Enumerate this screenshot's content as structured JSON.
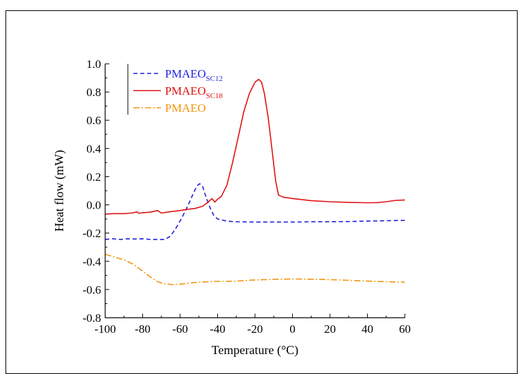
{
  "chart_data": {
    "type": "line",
    "title": "",
    "xlabel": "Temperature (°C)",
    "ylabel": "Heat flow (mW)",
    "xlim": [
      -100,
      60
    ],
    "ylim": [
      -0.8,
      1.0
    ],
    "xticks": [
      -100,
      -80,
      -60,
      -40,
      -20,
      0,
      20,
      40,
      60
    ],
    "yticks": [
      -0.8,
      -0.6,
      -0.4,
      -0.2,
      0.0,
      0.2,
      0.4,
      0.6,
      0.8,
      1.0
    ],
    "xtick_labels": [
      "-100",
      "-80",
      "-60",
      "-40",
      "-20",
      "0",
      "20",
      "40",
      "60"
    ],
    "ytick_labels": [
      "-0.8",
      "-0.6",
      "-0.4",
      "-0.2",
      "0.0",
      "0.2",
      "0.4",
      "0.6",
      "0.8",
      "1.0"
    ],
    "grid": false,
    "legend_position": "top-left",
    "series": [
      {
        "name": "PMAEO",
        "name_sub": "SC12",
        "color": "#1f1fdd",
        "dash": "dashed",
        "points": [
          [
            -100,
            -0.245
          ],
          [
            -96,
            -0.24
          ],
          [
            -92,
            -0.245
          ],
          [
            -88,
            -0.24
          ],
          [
            -84,
            -0.242
          ],
          [
            -80,
            -0.24
          ],
          [
            -76,
            -0.245
          ],
          [
            -72,
            -0.245
          ],
          [
            -68,
            -0.245
          ],
          [
            -65,
            -0.22
          ],
          [
            -62,
            -0.16
          ],
          [
            -59,
            -0.09
          ],
          [
            -56,
            -0.01
          ],
          [
            -53,
            0.08
          ],
          [
            -51,
            0.135
          ],
          [
            -49.5,
            0.15
          ],
          [
            -48,
            0.13
          ],
          [
            -46,
            0.05
          ],
          [
            -44,
            -0.02
          ],
          [
            -42,
            -0.075
          ],
          [
            -40,
            -0.1
          ],
          [
            -35,
            -0.115
          ],
          [
            -30,
            -0.12
          ],
          [
            -20,
            -0.122
          ],
          [
            -10,
            -0.122
          ],
          [
            0,
            -0.122
          ],
          [
            10,
            -0.12
          ],
          [
            20,
            -0.12
          ],
          [
            30,
            -0.118
          ],
          [
            40,
            -0.115
          ],
          [
            50,
            -0.112
          ],
          [
            60,
            -0.11
          ]
        ]
      },
      {
        "name": "PMAEO",
        "name_sub": "SC18",
        "color": "#e01010",
        "dash": "solid",
        "points": [
          [
            -100,
            -0.065
          ],
          [
            -95,
            -0.062
          ],
          [
            -90,
            -0.062
          ],
          [
            -86,
            -0.058
          ],
          [
            -83,
            -0.05
          ],
          [
            -82,
            -0.06
          ],
          [
            -80,
            -0.055
          ],
          [
            -76,
            -0.052
          ],
          [
            -72,
            -0.04
          ],
          [
            -70,
            -0.058
          ],
          [
            -66,
            -0.05
          ],
          [
            -60,
            -0.04
          ],
          [
            -56,
            -0.032
          ],
          [
            -52,
            -0.025
          ],
          [
            -48,
            -0.01
          ],
          [
            -45,
            0.02
          ],
          [
            -43,
            0.045
          ],
          [
            -41.5,
            0.02
          ],
          [
            -40,
            0.04
          ],
          [
            -38,
            0.06
          ],
          [
            -35,
            0.14
          ],
          [
            -32,
            0.3
          ],
          [
            -29,
            0.48
          ],
          [
            -26,
            0.66
          ],
          [
            -23,
            0.79
          ],
          [
            -20,
            0.87
          ],
          [
            -18,
            0.89
          ],
          [
            -16.5,
            0.87
          ],
          [
            -15,
            0.79
          ],
          [
            -13,
            0.62
          ],
          [
            -11,
            0.4
          ],
          [
            -9,
            0.17
          ],
          [
            -7.5,
            0.07
          ],
          [
            -5,
            0.055
          ],
          [
            0,
            0.045
          ],
          [
            10,
            0.03
          ],
          [
            20,
            0.022
          ],
          [
            30,
            0.018
          ],
          [
            40,
            0.015
          ],
          [
            45,
            0.016
          ],
          [
            50,
            0.022
          ],
          [
            55,
            0.032
          ],
          [
            60,
            0.035
          ]
        ]
      },
      {
        "name": "PMAEO",
        "name_sub": "",
        "color": "#f0960f",
        "dash": "dashdot",
        "points": [
          [
            -100,
            -0.35
          ],
          [
            -95,
            -0.37
          ],
          [
            -90,
            -0.39
          ],
          [
            -85,
            -0.42
          ],
          [
            -80,
            -0.47
          ],
          [
            -76,
            -0.51
          ],
          [
            -72,
            -0.545
          ],
          [
            -68,
            -0.56
          ],
          [
            -64,
            -0.565
          ],
          [
            -60,
            -0.562
          ],
          [
            -55,
            -0.555
          ],
          [
            -50,
            -0.548
          ],
          [
            -45,
            -0.545
          ],
          [
            -40,
            -0.542
          ],
          [
            -35,
            -0.542
          ],
          [
            -30,
            -0.54
          ],
          [
            -20,
            -0.532
          ],
          [
            -10,
            -0.528
          ],
          [
            0,
            -0.525
          ],
          [
            10,
            -0.527
          ],
          [
            20,
            -0.53
          ],
          [
            30,
            -0.535
          ],
          [
            40,
            -0.54
          ],
          [
            50,
            -0.545
          ],
          [
            60,
            -0.548
          ]
        ]
      }
    ]
  }
}
